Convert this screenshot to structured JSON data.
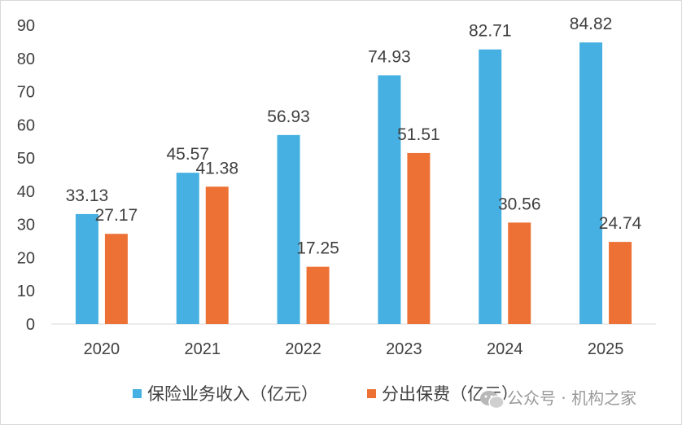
{
  "chart_data": {
    "type": "bar",
    "categories": [
      "2020",
      "2021",
      "2022",
      "2023",
      "2024",
      "2025"
    ],
    "series": [
      {
        "name": "保险业务收入（亿元）",
        "color": "#45B0E1",
        "values": [
          33.13,
          45.57,
          56.93,
          74.93,
          82.71,
          84.82
        ]
      },
      {
        "name": "分出保费（亿元）",
        "color": "#ED7134",
        "values": [
          27.17,
          41.38,
          17.25,
          51.51,
          30.56,
          24.74
        ]
      }
    ],
    "ylim": [
      0,
      90
    ],
    "yticks": [
      0,
      10,
      20,
      30,
      40,
      50,
      60,
      70,
      80,
      90
    ],
    "grid": false,
    "legend_position": "bottom"
  },
  "watermark": {
    "text": "公众号 · 机构之家",
    "icon": "wechat-icon"
  }
}
